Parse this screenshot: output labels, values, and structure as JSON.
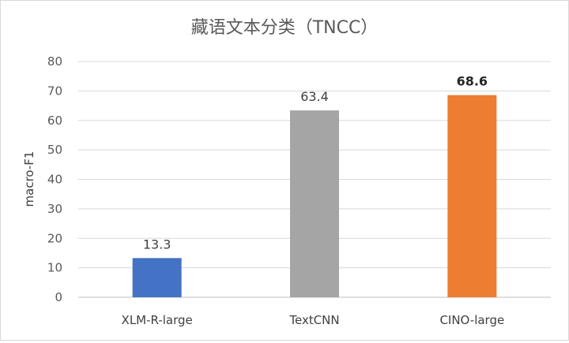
{
  "chart_data": {
    "type": "bar",
    "title": "藏语文本分类（TNCC）",
    "xlabel": "",
    "ylabel": "macro-F1",
    "categories": [
      "XLM-R-large",
      "TextCNN",
      "CINO-large"
    ],
    "values": [
      13.3,
      63.4,
      68.6
    ],
    "data_labels": [
      "13.3",
      "63.4",
      "68.6"
    ],
    "bold_labels": [
      false,
      false,
      true
    ],
    "colors": [
      "#4472c4",
      "#a5a5a5",
      "#ed7d31"
    ],
    "ylim": [
      0,
      80
    ],
    "yticks": [
      0,
      10,
      20,
      30,
      40,
      50,
      60,
      70,
      80
    ],
    "grid": true,
    "legend": "none"
  }
}
